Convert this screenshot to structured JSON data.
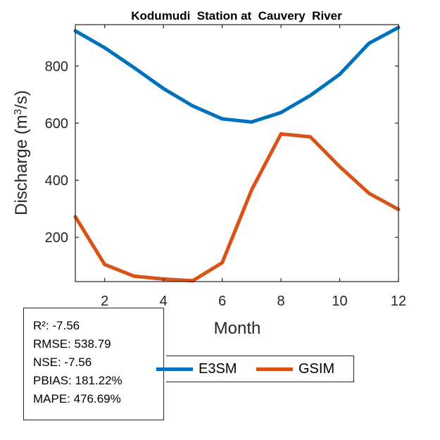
{
  "chart_data": {
    "type": "line",
    "title": "Kodumudi  Station at  Cauvery  River",
    "xlabel": "Month",
    "ylabel_main": "Discharge (m",
    "ylabel_sup": "3",
    "ylabel_tail": "/s)",
    "x": [
      1,
      2,
      3,
      4,
      5,
      6,
      7,
      8,
      9,
      10,
      11,
      12
    ],
    "xlim": [
      1,
      12
    ],
    "ylim": [
      45,
      945
    ],
    "xticks": [
      2,
      4,
      6,
      8,
      10,
      12
    ],
    "yticks": [
      200,
      400,
      600,
      800
    ],
    "grid": false,
    "legend_position": "bottom",
    "series": [
      {
        "name": "E3SM",
        "color": "#0072BD",
        "values": [
          923,
          864,
          794,
          721,
          660,
          615,
          604,
          637,
          697,
          771,
          880,
          935
        ]
      },
      {
        "name": "GSIM",
        "color": "#D95319",
        "values": [
          272,
          105,
          64,
          54,
          48,
          111,
          366,
          562,
          552,
          448,
          354,
          298
        ]
      }
    ]
  },
  "stats": [
    "R²: -7.56",
    "RMSE: 538.79",
    "NSE: -7.56",
    "PBIAS: 181.22%",
    "MAPE: 476.69%"
  ]
}
